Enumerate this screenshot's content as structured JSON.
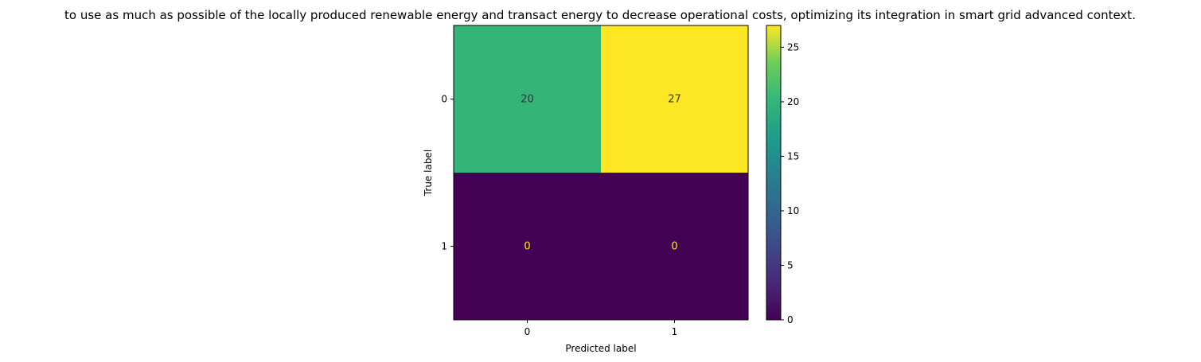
{
  "chart_data": {
    "type": "heatmap",
    "title": "to use as much as possible of the locally produced renewable energy and transact energy to decrease operational costs, optimizing its integration in smart grid advanced context.",
    "xlabel": "Predicted label",
    "ylabel": "True label",
    "x_categories": [
      "0",
      "1"
    ],
    "y_categories": [
      "0",
      "1"
    ],
    "matrix": [
      [
        20,
        27
      ],
      [
        0,
        0
      ]
    ],
    "colorbar": {
      "colormap": "viridis",
      "range": [
        0,
        27
      ],
      "ticks": [
        0,
        5,
        10,
        15,
        20,
        25
      ]
    }
  }
}
